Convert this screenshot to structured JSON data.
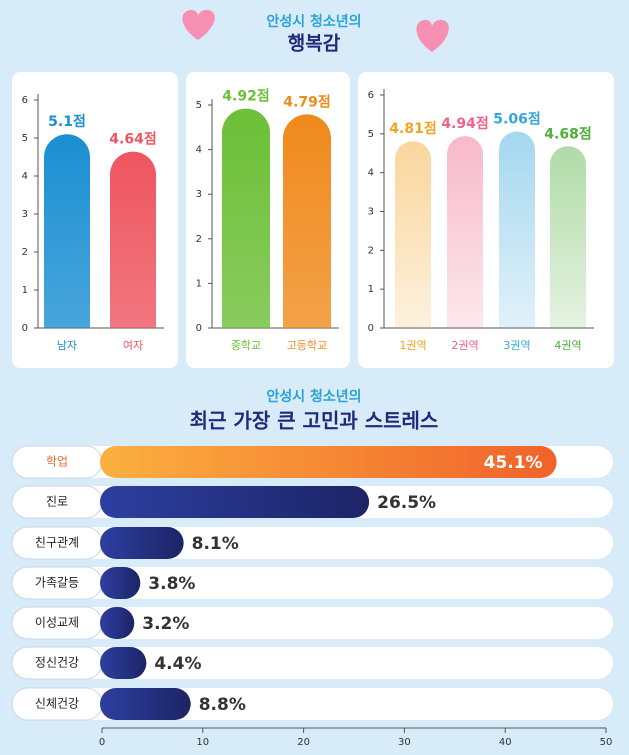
{
  "happiness_heading": {
    "kicker": "안성시 청소년의",
    "title": "행복감"
  },
  "stress_heading": {
    "kicker": "안성시 청소년의",
    "title": "최근 가장 큰 고민과 스트레스"
  },
  "chart_data": [
    {
      "type": "bar",
      "categories": [
        "남자",
        "여자"
      ],
      "values": [
        5.1,
        4.64
      ],
      "value_labels": [
        "5.1점",
        "4.64점"
      ],
      "colors": [
        "#1b8fd2",
        "#ee5560"
      ],
      "ylim": [
        0,
        6
      ],
      "yticks": [
        0,
        1,
        2,
        3,
        4,
        5,
        6
      ]
    },
    {
      "type": "bar",
      "categories": [
        "중학교",
        "고등학교"
      ],
      "values": [
        4.92,
        4.79
      ],
      "value_labels": [
        "4.92점",
        "4.79점"
      ],
      "colors": [
        "#6cbf36",
        "#f08a1c"
      ],
      "ylim": [
        0,
        5
      ],
      "yticks": [
        0,
        1,
        2,
        3,
        4,
        5
      ]
    },
    {
      "type": "bar",
      "categories": [
        "1권역",
        "2권역",
        "3권역",
        "4권역"
      ],
      "values": [
        4.81,
        4.94,
        5.06,
        4.68
      ],
      "value_labels": [
        "4.81점",
        "4.94점",
        "5.06점",
        "4.68점"
      ],
      "colors": [
        "#f2a322",
        "#ef6487",
        "#35a6dc",
        "#4fae3a"
      ],
      "ylim": [
        0,
        6
      ],
      "yticks": [
        0,
        1,
        2,
        3,
        4,
        5,
        6
      ]
    },
    {
      "type": "hbar",
      "categories": [
        "학업",
        "진로",
        "친구관계",
        "가족갈등",
        "이성교제",
        "정신건강",
        "신체건강"
      ],
      "values": [
        45.1,
        26.5,
        8.1,
        3.8,
        3.2,
        4.4,
        8.8
      ],
      "value_labels": [
        "45.1%",
        "26.5%",
        "8.1%",
        "3.8%",
        "3.2%",
        "4.4%",
        "8.8%"
      ],
      "colors": [
        "#f7782a",
        "#27358a",
        "#27358a",
        "#27358a",
        "#27358a",
        "#27358a",
        "#27358a"
      ],
      "xlim": [
        0,
        50
      ],
      "xticks": [
        0,
        10,
        20,
        30,
        40,
        50
      ]
    }
  ]
}
